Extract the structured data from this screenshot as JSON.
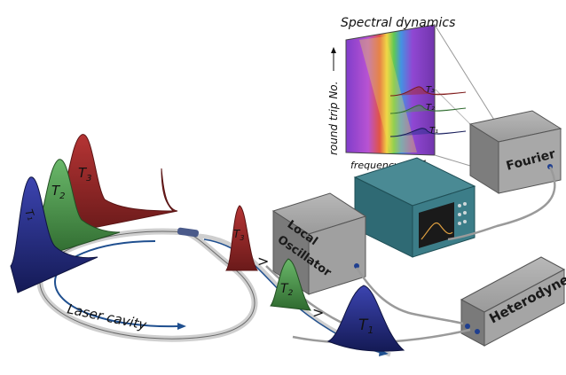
{
  "spectral": {
    "title": "Spectral dynamics",
    "y_axis": "round trip No.",
    "x_axis": "frequency",
    "pulse_labels": [
      "T₁",
      "T₂",
      "T₃"
    ]
  },
  "boxes": {
    "fourier": "Fourier",
    "local_osc_line1": "Local",
    "local_osc_line2": "Oscillator",
    "heterodyne": "Heterodyne"
  },
  "cavity": {
    "label": "Laser cavity"
  },
  "pulses_left": {
    "t1": "T₁",
    "t2": "T",
    "t2_sub": "2",
    "t3": "T",
    "t3_sub": "3"
  },
  "pulses_right": {
    "t1": "T",
    "t1_sub": "1",
    "t2": "T",
    "t2_sub": "2",
    "t3": "T",
    "t3_sub": "3"
  },
  "arrows": [
    ">",
    ">"
  ],
  "colors": {
    "red": "#a32a2a",
    "green": "#4f9a4f",
    "blue": "#2a2f8f",
    "box": "#8f8f8f",
    "scope": "#2f7a86"
  }
}
